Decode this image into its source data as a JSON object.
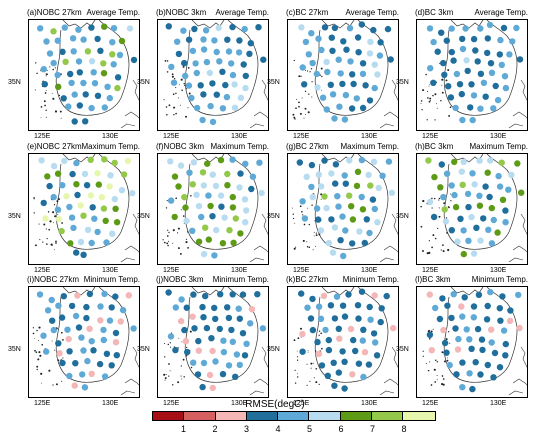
{
  "panels": [
    {
      "title_left": "(a)NOBC 27km",
      "title_right": "Average Temp."
    },
    {
      "title_left": "(b)NOBC 3km",
      "title_right": "Average Temp."
    },
    {
      "title_left": "(c)BC 27km",
      "title_right": "Average Temp."
    },
    {
      "title_left": "(d)BC 3km",
      "title_right": "Average Temp."
    },
    {
      "title_left": "(e)NOBC 27km",
      "title_right": "Maximum Temp."
    },
    {
      "title_left": "(f)NOBC 3km",
      "title_right": "Maximum Temp."
    },
    {
      "title_left": "(g)BC 27km",
      "title_right": "Maximum Temp."
    },
    {
      "title_left": "(h)BC 3km",
      "title_right": "Maximum Temp."
    },
    {
      "title_left": "(i)NOBC 27km",
      "title_right": "Minimum Temp."
    },
    {
      "title_left": "(j)NOBC 3km",
      "title_right": "Minimum Temp."
    },
    {
      "title_left": "(k)BC 27km",
      "title_right": "Minimum Temp."
    },
    {
      "title_left": "(l)BC 3km",
      "title_right": "Minimum Temp."
    }
  ],
  "axis": {
    "lat_label": "35N",
    "lon_left": "125E",
    "lon_right": "130E"
  },
  "colorbar": {
    "title": "RMSE(degC)",
    "colors": [
      "#a50f15",
      "#d65f5f",
      "#f4b6b6",
      "#1f6e9c",
      "#5fa9d6",
      "#b7dcf0",
      "#5d9b17",
      "#93c84a",
      "#e6f7ad"
    ],
    "labels": [
      "1",
      "2",
      "3",
      "4",
      "5",
      "6",
      "7",
      "8"
    ]
  },
  "station_colors": {
    "p3": "#f4b6b6",
    "d4": "#1f6e9c",
    "m5": "#5fa9d6",
    "l6": "#b7dcf0",
    "g7": "#5d9b17",
    "g8": "#93c84a",
    "y9": "#e6f7ad"
  },
  "panel_mix": [
    {
      "d4": 0.25,
      "m5": 0.5,
      "l6": 0.1,
      "g7": 0.07,
      "g8": 0.08
    },
    {
      "d4": 0.3,
      "m5": 0.55,
      "l6": 0.15
    },
    {
      "d4": 0.55,
      "m5": 0.4,
      "l6": 0.05
    },
    {
      "d4": 0.6,
      "m5": 0.35,
      "l6": 0.05
    },
    {
      "d4": 0.12,
      "m5": 0.2,
      "l6": 0.25,
      "g7": 0.2,
      "g8": 0.15,
      "y9": 0.08
    },
    {
      "d4": 0.1,
      "m5": 0.2,
      "l6": 0.35,
      "g7": 0.2,
      "g8": 0.15
    },
    {
      "d4": 0.25,
      "m5": 0.3,
      "l6": 0.25,
      "g7": 0.15,
      "g8": 0.05
    },
    {
      "d4": 0.25,
      "m5": 0.3,
      "l6": 0.2,
      "g7": 0.15,
      "g8": 0.1
    },
    {
      "p3": 0.15,
      "d4": 0.55,
      "m5": 0.3
    },
    {
      "p3": 0.2,
      "d4": 0.55,
      "m5": 0.25
    },
    {
      "p3": 0.18,
      "d4": 0.6,
      "m5": 0.22
    },
    {
      "p3": 0.2,
      "d4": 0.55,
      "m5": 0.25
    }
  ]
}
